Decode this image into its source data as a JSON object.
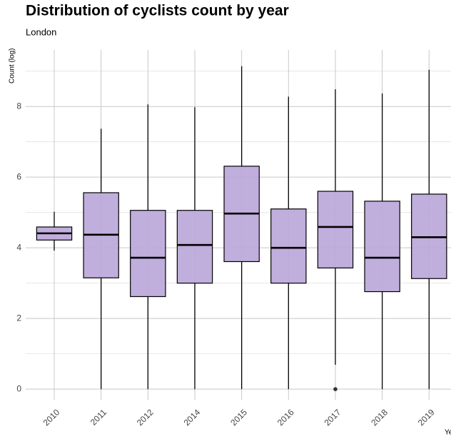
{
  "chart_data": {
    "type": "box",
    "title": "Distribution of cyclists count by year",
    "subtitle": "London",
    "y_label": "Count (log)",
    "x_label": "Ye",
    "categories": [
      "2010",
      "2011",
      "2012",
      "2014",
      "2015",
      "2016",
      "2017",
      "2018",
      "2019"
    ],
    "boxes": [
      {
        "whislo": 3.92,
        "q1": 4.22,
        "med": 4.41,
        "q3": 4.59,
        "whishi": 5.02
      },
      {
        "whislo": 0,
        "q1": 3.15,
        "med": 4.37,
        "q3": 5.56,
        "whishi": 7.37
      },
      {
        "whislo": 0,
        "q1": 2.62,
        "med": 3.72,
        "q3": 5.06,
        "whishi": 8.06
      },
      {
        "whislo": 0,
        "q1": 3.0,
        "med": 4.08,
        "q3": 5.06,
        "whishi": 7.98
      },
      {
        "whislo": 0,
        "q1": 3.61,
        "med": 4.97,
        "q3": 6.31,
        "whishi": 9.14
      },
      {
        "whislo": 0,
        "q1": 3.0,
        "med": 4.0,
        "q3": 5.1,
        "whishi": 8.28
      },
      {
        "whislo": 0.69,
        "q1": 3.43,
        "med": 4.59,
        "q3": 5.6,
        "whishi": 8.49
      },
      {
        "whislo": 0,
        "q1": 2.76,
        "med": 3.72,
        "q3": 5.32,
        "whishi": 8.37
      },
      {
        "whislo": 0,
        "q1": 3.13,
        "med": 4.3,
        "q3": 5.52,
        "whishi": 9.04
      }
    ],
    "outliers": [
      [],
      [],
      [],
      [],
      [],
      [],
      [
        0
      ],
      [],
      []
    ],
    "color": "#b9a5d8",
    "ylim": [
      -0.3,
      9.6
    ],
    "yticks": [
      0,
      2,
      4,
      6,
      8
    ],
    "minor_yticks": [
      1,
      3,
      5,
      7,
      9
    ],
    "grid": true
  }
}
